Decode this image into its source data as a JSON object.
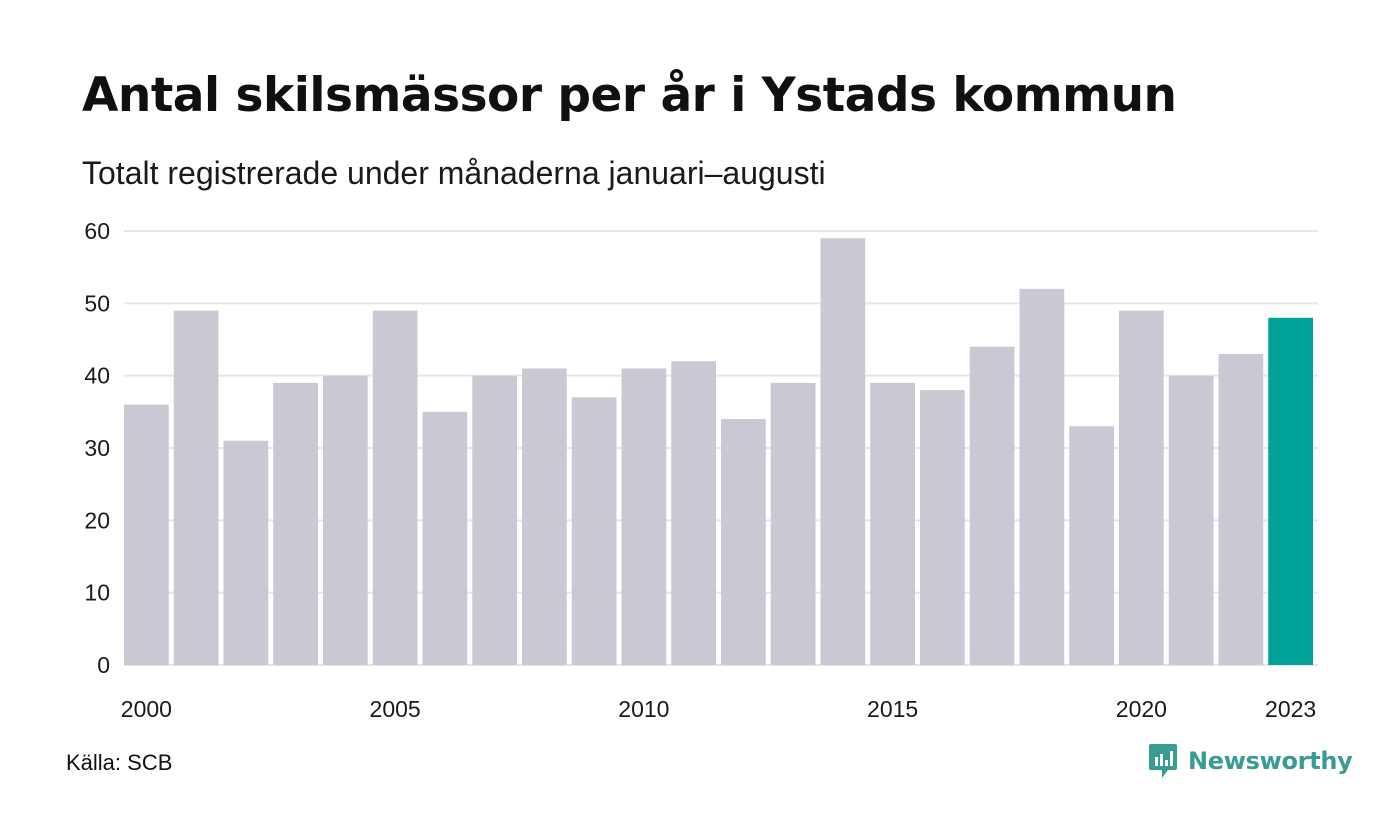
{
  "title": "Antal skilsmässor per år i Ystads kommun",
  "subtitle": "Totalt registrerade under månaderna januari–augusti",
  "source": "Källa: SCB",
  "brand": {
    "name": "Newsworthy",
    "icon": "newsworthy-logo-icon",
    "color": "#3a9b95"
  },
  "colors": {
    "bar": "#c9c8d3",
    "highlight": "#00a398",
    "grid": "#e6e6ea"
  },
  "chart_data": {
    "type": "bar",
    "categories": [
      "2000",
      "2001",
      "2002",
      "2003",
      "2004",
      "2005",
      "2006",
      "2007",
      "2008",
      "2009",
      "2010",
      "2011",
      "2012",
      "2013",
      "2014",
      "2015",
      "2016",
      "2017",
      "2018",
      "2019",
      "2020",
      "2021",
      "2022",
      "2023"
    ],
    "values": [
      36,
      49,
      31,
      39,
      40,
      49,
      35,
      40,
      41,
      37,
      41,
      42,
      34,
      39,
      59,
      39,
      38,
      44,
      52,
      33,
      49,
      40,
      43,
      48
    ],
    "highlight_category": "2023",
    "x_tick_labels": [
      "2000",
      "2005",
      "2010",
      "2015",
      "2020",
      "2023"
    ],
    "y_ticks": [
      0,
      10,
      20,
      30,
      40,
      50,
      60
    ],
    "ylim": [
      0,
      60
    ],
    "grid": true,
    "legend": "none"
  }
}
